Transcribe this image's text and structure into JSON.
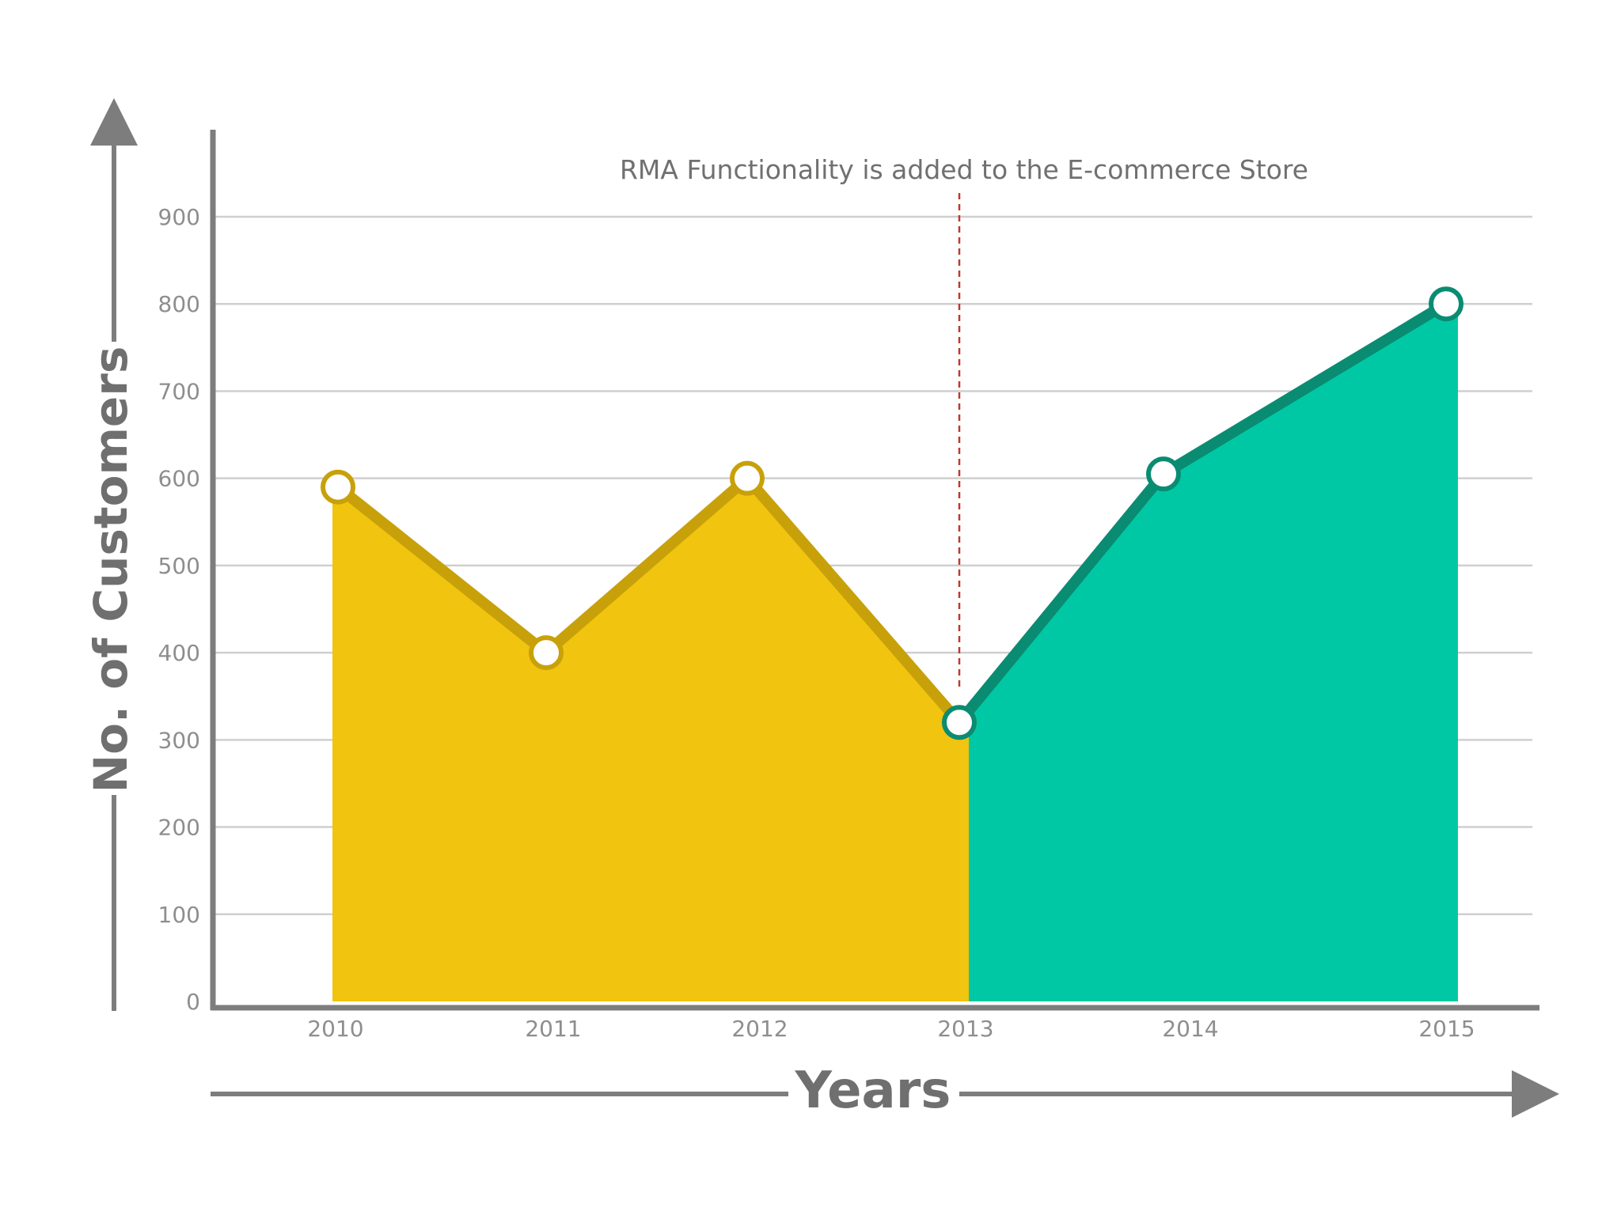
{
  "colors": {
    "before_fill": "#f1c40f",
    "before_line": "#c8a10a",
    "after_fill": "#00c8a5",
    "after_line": "#0a8c72",
    "grid": "#cfcfcf",
    "axis": "#7d7d7d",
    "annotation_line": "#c0392b",
    "marker_fill": "#ffffff"
  },
  "chart_data": {
    "type": "area",
    "x": [
      "2010",
      "2011",
      "2012",
      "2013",
      "2014",
      "2015"
    ],
    "series": [
      {
        "x": [
          "2010",
          "2011",
          "2012",
          "2013"
        ],
        "values": [
          590,
          400,
          600,
          320
        ]
      },
      {
        "x": [
          "2013",
          "2014",
          "2015"
        ],
        "values": [
          320,
          605,
          800
        ]
      }
    ],
    "title": "",
    "xlabel": "Years",
    "ylabel": "No. of Customers",
    "ylim": [
      0,
      900
    ],
    "yticks": [
      "0",
      "100",
      "200",
      "300",
      "400",
      "500",
      "600",
      "700",
      "800",
      "900"
    ],
    "grid": true,
    "legend": "none",
    "annotations": [
      {
        "x": "2013",
        "text": "RMA Functionality is added to the E-commerce Store"
      }
    ]
  }
}
